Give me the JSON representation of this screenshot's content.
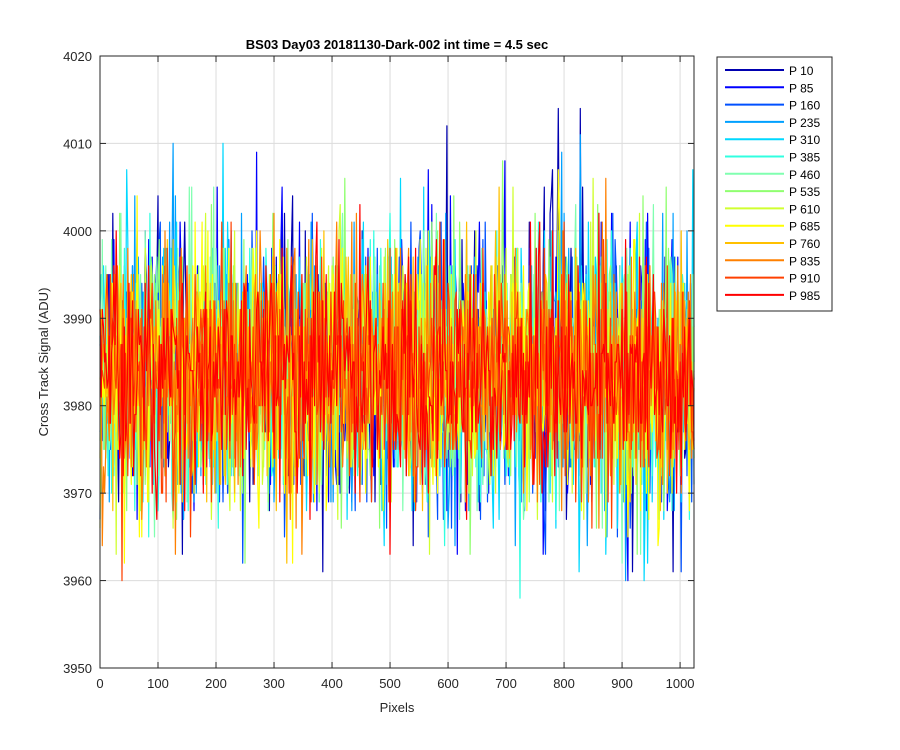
{
  "chart_data": {
    "type": "line",
    "title": "BS03 Day03 20181130-Dark-002 int time = 4.5 sec",
    "xlabel": "Pixels",
    "ylabel": "Cross Track Signal (ADU)",
    "xlim": [
      0,
      1024
    ],
    "ylim": [
      3950,
      4020
    ],
    "xticks": [
      0,
      100,
      200,
      300,
      400,
      500,
      600,
      700,
      800,
      900,
      1000
    ],
    "yticks": [
      3950,
      3960,
      3970,
      3980,
      3990,
      4000,
      4010,
      4020
    ],
    "grid": true,
    "legend_position": "outside-right",
    "series": [
      {
        "name": "P 10",
        "color": "#0000b0",
        "mean": 3984.5,
        "std": 8.5,
        "min": 3957,
        "max": 4014
      },
      {
        "name": "P 85",
        "color": "#0000ff",
        "mean": 3984.5,
        "std": 8.0,
        "min": 3958,
        "max": 4012
      },
      {
        "name": "P 160",
        "color": "#0050ff",
        "mean": 3984.0,
        "std": 8.0,
        "min": 3960,
        "max": 4010
      },
      {
        "name": "P 235",
        "color": "#00a0ff",
        "mean": 3984.0,
        "std": 8.0,
        "min": 3954,
        "max": 4011
      },
      {
        "name": "P 310",
        "color": "#00d8ff",
        "mean": 3984.0,
        "std": 8.0,
        "min": 3952,
        "max": 4010
      },
      {
        "name": "P 385",
        "color": "#30ffe0",
        "mean": 3984.0,
        "std": 7.5,
        "min": 3956,
        "max": 4010
      },
      {
        "name": "P 460",
        "color": "#80ffb0",
        "mean": 3984.0,
        "std": 7.5,
        "min": 3957,
        "max": 4010
      },
      {
        "name": "P 535",
        "color": "#90ff70",
        "mean": 3984.0,
        "std": 7.5,
        "min": 3952,
        "max": 4015
      },
      {
        "name": "P 610",
        "color": "#d0ff30",
        "mean": 3984.0,
        "std": 7.5,
        "min": 3955,
        "max": 4011
      },
      {
        "name": "P 685",
        "color": "#ffff00",
        "mean": 3984.0,
        "std": 7.5,
        "min": 3959,
        "max": 4010
      },
      {
        "name": "P 760",
        "color": "#ffc000",
        "mean": 3984.0,
        "std": 7.0,
        "min": 3957,
        "max": 4013
      },
      {
        "name": "P 835",
        "color": "#ff8000",
        "mean": 3984.0,
        "std": 7.0,
        "min": 3957,
        "max": 4012
      },
      {
        "name": "P 910",
        "color": "#ff4000",
        "mean": 3984.0,
        "std": 7.0,
        "min": 3953,
        "max": 4011
      },
      {
        "name": "P 985",
        "color": "#ff0000",
        "mean": 3984.0,
        "std": 6.5,
        "min": 3956,
        "max": 4008
      }
    ]
  }
}
